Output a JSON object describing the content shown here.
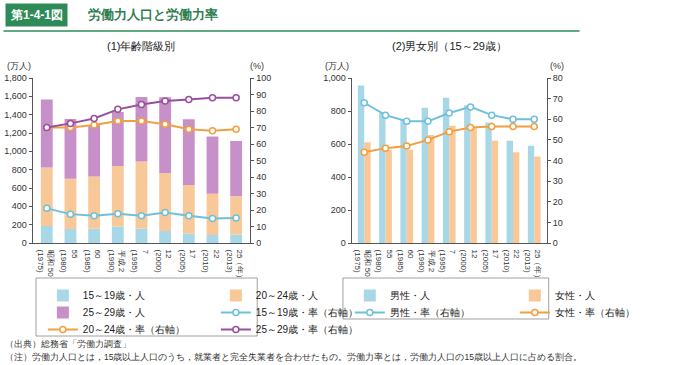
{
  "header": {
    "label": "第1-4-1図",
    "title": "労働力人口と労働力率"
  },
  "chart_data": [
    {
      "type": "bar",
      "title": "(1)年齢階級別",
      "categories": [
        "昭和 50\n(1975)",
        "55\n(1980)",
        "60\n(1985)",
        "平成 2\n(1990)",
        "7\n(1995)",
        "12\n(2000)",
        "17\n(2005)",
        "22\n(2010)",
        "25（年）\n(2013)"
      ],
      "ylabel": "(万人)",
      "y2label": "(%)",
      "ylim": [
        0,
        1800
      ],
      "yticks": [
        0,
        200,
        400,
        600,
        800,
        {
          "value": 1000,
          "label": "1,000"
        },
        {
          "value": 1200,
          "label": "1,200"
        },
        {
          "value": 1400,
          "label": "1,400"
        },
        {
          "value": 1600,
          "label": "1,600"
        },
        {
          "value": 1800,
          "label": "1,800"
        }
      ],
      "y2lim": [
        0,
        100
      ],
      "y2ticks": [
        0,
        10,
        20,
        30,
        40,
        50,
        60,
        70,
        80,
        90,
        100
      ],
      "stacked": true,
      "grid": false,
      "series": [
        {
          "name": "15～19歳・人",
          "type": "bar",
          "color": "#a8d8e8",
          "values": [
            185,
            152,
            156,
            180,
            158,
            131,
            104,
            88,
            94
          ]
        },
        {
          "name": "20～24歳・人",
          "type": "bar",
          "color": "#f8c898",
          "values": [
            640,
            550,
            570,
            660,
            730,
            630,
            530,
            450,
            415
          ]
        },
        {
          "name": "25～29歳・人",
          "type": "bar",
          "color": "#c790c8",
          "values": [
            740,
            650,
            560,
            590,
            705,
            830,
            715,
            625,
            605
          ]
        },
        {
          "name": "15～19歳・率（右軸）",
          "type": "line",
          "axis": "y2",
          "marker": "circle",
          "color": "#6fc0da",
          "values": [
            21,
            17.5,
            16.5,
            17.8,
            16.5,
            18.5,
            16.5,
            14.8,
            15.2
          ]
        },
        {
          "name": "20～24歳・率（右軸）",
          "type": "line",
          "axis": "y2",
          "marker": "circle",
          "color": "#f0a040",
          "values": [
            70,
            70,
            71.5,
            74,
            74,
            72,
            69,
            68,
            69
          ]
        },
        {
          "name": "25～29歳・率（右軸）",
          "type": "line",
          "axis": "y2",
          "marker": "circle",
          "color": "#9a4f9d",
          "values": [
            70,
            72.5,
            75.5,
            81,
            84,
            86,
            87,
            88,
            88
          ]
        }
      ]
    },
    {
      "type": "bar",
      "title": "(2)男女別（15～29歳）",
      "categories": [
        "昭和 50\n(1975)",
        "55\n(1980)",
        "60\n(1985)",
        "平成 2\n(1990)",
        "7\n(1995)",
        "12\n(2000)",
        "17\n(2005)",
        "22\n(2010)",
        "25（年）\n(2013)"
      ],
      "ylabel": "(万人)",
      "y2label": "(%)",
      "ylim": [
        0,
        1000
      ],
      "yticks": [
        0,
        200,
        400,
        600,
        800,
        {
          "value": 1000,
          "label": "1,000"
        }
      ],
      "y2lim": [
        0,
        80
      ],
      "y2ticks": [
        0,
        10,
        20,
        30,
        40,
        50,
        60,
        70,
        80
      ],
      "stacked": false,
      "grid": false,
      "series": [
        {
          "name": "男性・人",
          "type": "bar",
          "color": "#a8d8e8",
          "values": [
            955,
            790,
            745,
            820,
            880,
            835,
            730,
            620,
            590
          ]
        },
        {
          "name": "女性・人",
          "type": "bar",
          "color": "#f8c898",
          "values": [
            610,
            565,
            565,
            655,
            710,
            705,
            620,
            550,
            525
          ]
        },
        {
          "name": "男性・率（右軸）",
          "type": "line",
          "axis": "y2",
          "marker": "circle",
          "color": "#6fc0da",
          "values": [
            68,
            62,
            59,
            59,
            63,
            66,
            62,
            60,
            60
          ]
        },
        {
          "name": "女性・率（右軸）",
          "type": "line",
          "axis": "y2",
          "marker": "circle",
          "color": "#f0a040",
          "values": [
            44,
            46,
            47,
            50,
            54,
            56,
            56.5,
            56.5,
            56.5
          ]
        }
      ]
    }
  ],
  "notes": [
    "（出典）総務省「労働力調査」",
    "（注）労働力人口とは，15歳以上人口のうち，就業者と完全失業者を合わせたもの。労働力率とは，労働力人口の15歳以上人口に占める割合。"
  ]
}
